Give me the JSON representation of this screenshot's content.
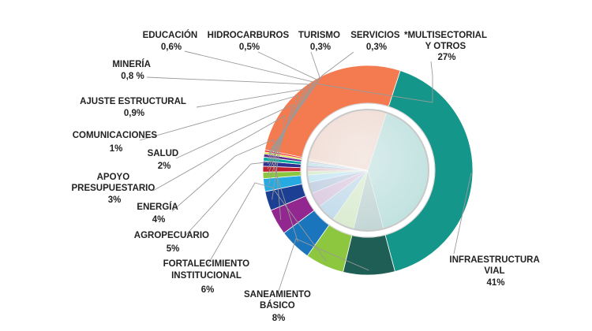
{
  "chart_data": {
    "type": "pie",
    "title": "",
    "unit": "%",
    "slices": [
      {
        "name": "INFRAESTRUCTURA VIAL",
        "value": 41,
        "value_label": "41%",
        "color": "#15968a"
      },
      {
        "name": "SANEAMIENTO BÁSICO",
        "value": 8,
        "value_label": "8%",
        "color": "#1f5e55"
      },
      {
        "name": "FORTALECIMIENTO INSTITUCIONAL",
        "value": 6,
        "value_label": "6%",
        "color": "#8dc63f"
      },
      {
        "name": "AGROPECUARIO",
        "value": 5,
        "value_label": "5%",
        "color": "#1b75bc"
      },
      {
        "name": "ENERGÍA",
        "value": 4,
        "value_label": "4%",
        "color": "#92278f"
      },
      {
        "name": "APOYO PRESUPUESTARIO",
        "value": 3,
        "value_label": "3%",
        "color": "#1c3f94"
      },
      {
        "name": "SALUD",
        "value": 2,
        "value_label": "2%",
        "color": "#27aae1"
      },
      {
        "name": "COMUNICACIONES",
        "value": 1,
        "value_label": "1%",
        "color": "#8dc63f"
      },
      {
        "name": "AJUSTE ESTRUCTURAL",
        "value": 0.9,
        "value_label": "0,9%",
        "color": "#be1e2d"
      },
      {
        "name": "MINERÍA",
        "value": 0.8,
        "value_label": "0,8 %",
        "color": "#2e3192"
      },
      {
        "name": "EDUCACIÓN",
        "value": 0.6,
        "value_label": "0,6%",
        "color": "#00a99d"
      },
      {
        "name": "HIDROCARBUROS",
        "value": 0.5,
        "value_label": "0,5%",
        "color": "#662d91"
      },
      {
        "name": "TURISMO",
        "value": 0.3,
        "value_label": "0,3%",
        "color": "#d7df23"
      },
      {
        "name": "SERVICIOS",
        "value": 0.3,
        "value_label": "0,3%",
        "color": "#ed1c24"
      },
      {
        "name": "*MULTISECTORIAL Y OTROS",
        "value": 27,
        "value_label": "27%",
        "color": "#f47b4f"
      }
    ]
  }
}
